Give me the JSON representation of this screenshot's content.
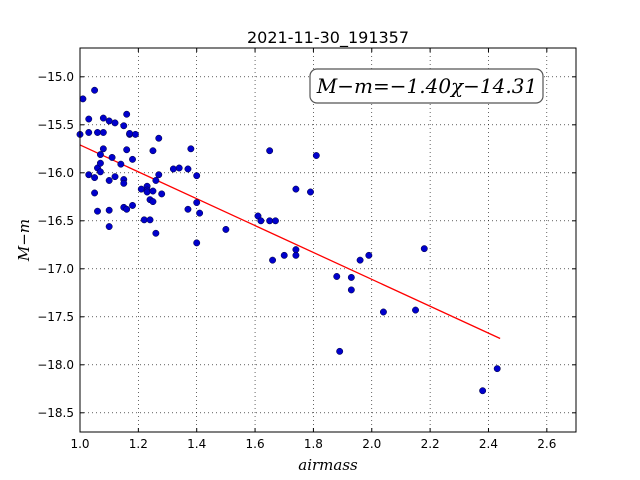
{
  "chart_data": {
    "type": "scatter",
    "title": "2021-11-30_191357",
    "xlabel": "airmass",
    "ylabel": "M−m",
    "xlim": [
      1.0,
      2.7
    ],
    "ylim": [
      -18.7,
      -14.7
    ],
    "y_inverted": true,
    "grid": true,
    "x_ticks": [
      1.0,
      1.2,
      1.4,
      1.6,
      1.8,
      2.0,
      2.2,
      2.4,
      2.6
    ],
    "x_tick_labels": [
      "1.0",
      "1.2",
      "1.4",
      "1.6",
      "1.8",
      "2.0",
      "2.2",
      "2.4",
      "2.6"
    ],
    "y_ticks": [
      -15.0,
      -15.5,
      -16.0,
      -16.5,
      -17.0,
      -17.5,
      -18.0,
      -18.5
    ],
    "y_tick_labels": [
      "−15.0",
      "−15.5",
      "−16.0",
      "−16.5",
      "−17.0",
      "−17.5",
      "−18.0",
      "−18.5"
    ],
    "annotation": "M−m=−1.40χ−14.31",
    "fit": {
      "slope": -1.4,
      "intercept": -14.31,
      "x_range": [
        1.0,
        2.44
      ],
      "color": "#ff0000"
    },
    "point_color": "#0000cc",
    "points": [
      [
        1.0,
        -15.6
      ],
      [
        1.01,
        -15.23
      ],
      [
        1.03,
        -15.44
      ],
      [
        1.03,
        -15.58
      ],
      [
        1.03,
        -16.02
      ],
      [
        1.05,
        -15.14
      ],
      [
        1.05,
        -16.05
      ],
      [
        1.05,
        -16.21
      ],
      [
        1.06,
        -16.4
      ],
      [
        1.06,
        -15.58
      ],
      [
        1.06,
        -15.95
      ],
      [
        1.07,
        -15.9
      ],
      [
        1.07,
        -15.99
      ],
      [
        1.07,
        -15.81
      ],
      [
        1.08,
        -15.75
      ],
      [
        1.08,
        -15.58
      ],
      [
        1.08,
        -15.43
      ],
      [
        1.1,
        -15.46
      ],
      [
        1.1,
        -16.08
      ],
      [
        1.1,
        -16.39
      ],
      [
        1.1,
        -16.56
      ],
      [
        1.11,
        -15.84
      ],
      [
        1.12,
        -16.04
      ],
      [
        1.12,
        -15.48
      ],
      [
        1.14,
        -15.91
      ],
      [
        1.15,
        -15.51
      ],
      [
        1.15,
        -16.07
      ],
      [
        1.15,
        -16.11
      ],
      [
        1.15,
        -16.36
      ],
      [
        1.16,
        -15.39
      ],
      [
        1.16,
        -15.76
      ],
      [
        1.16,
        -16.38
      ],
      [
        1.17,
        -15.6
      ],
      [
        1.17,
        -15.59
      ],
      [
        1.18,
        -15.86
      ],
      [
        1.18,
        -16.34
      ],
      [
        1.19,
        -15.6
      ],
      [
        1.21,
        -16.17
      ],
      [
        1.22,
        -16.49
      ],
      [
        1.23,
        -16.14
      ],
      [
        1.23,
        -16.18
      ],
      [
        1.23,
        -16.2
      ],
      [
        1.24,
        -16.28
      ],
      [
        1.24,
        -16.49
      ],
      [
        1.25,
        -16.3
      ],
      [
        1.25,
        -15.77
      ],
      [
        1.25,
        -16.19
      ],
      [
        1.26,
        -16.08
      ],
      [
        1.26,
        -16.63
      ],
      [
        1.27,
        -16.02
      ],
      [
        1.27,
        -15.64
      ],
      [
        1.28,
        -16.22
      ],
      [
        1.32,
        -15.96
      ],
      [
        1.34,
        -15.95
      ],
      [
        1.37,
        -15.96
      ],
      [
        1.37,
        -16.38
      ],
      [
        1.38,
        -15.75
      ],
      [
        1.4,
        -16.03
      ],
      [
        1.4,
        -16.31
      ],
      [
        1.4,
        -16.73
      ],
      [
        1.41,
        -16.42
      ],
      [
        1.5,
        -16.59
      ],
      [
        1.61,
        -16.45
      ],
      [
        1.62,
        -16.5
      ],
      [
        1.65,
        -16.5
      ],
      [
        1.65,
        -15.77
      ],
      [
        1.66,
        -16.91
      ],
      [
        1.67,
        -16.5
      ],
      [
        1.7,
        -16.86
      ],
      [
        1.74,
        -16.86
      ],
      [
        1.74,
        -16.8
      ],
      [
        1.74,
        -16.17
      ],
      [
        1.79,
        -16.2
      ],
      [
        1.81,
        -15.82
      ],
      [
        1.88,
        -17.08
      ],
      [
        1.89,
        -17.86
      ],
      [
        1.93,
        -17.22
      ],
      [
        1.93,
        -17.09
      ],
      [
        1.96,
        -16.91
      ],
      [
        1.99,
        -16.86
      ],
      [
        2.04,
        -17.45
      ],
      [
        2.15,
        -17.43
      ],
      [
        2.18,
        -16.79
      ],
      [
        2.38,
        -18.27
      ],
      [
        2.43,
        -18.04
      ]
    ]
  }
}
